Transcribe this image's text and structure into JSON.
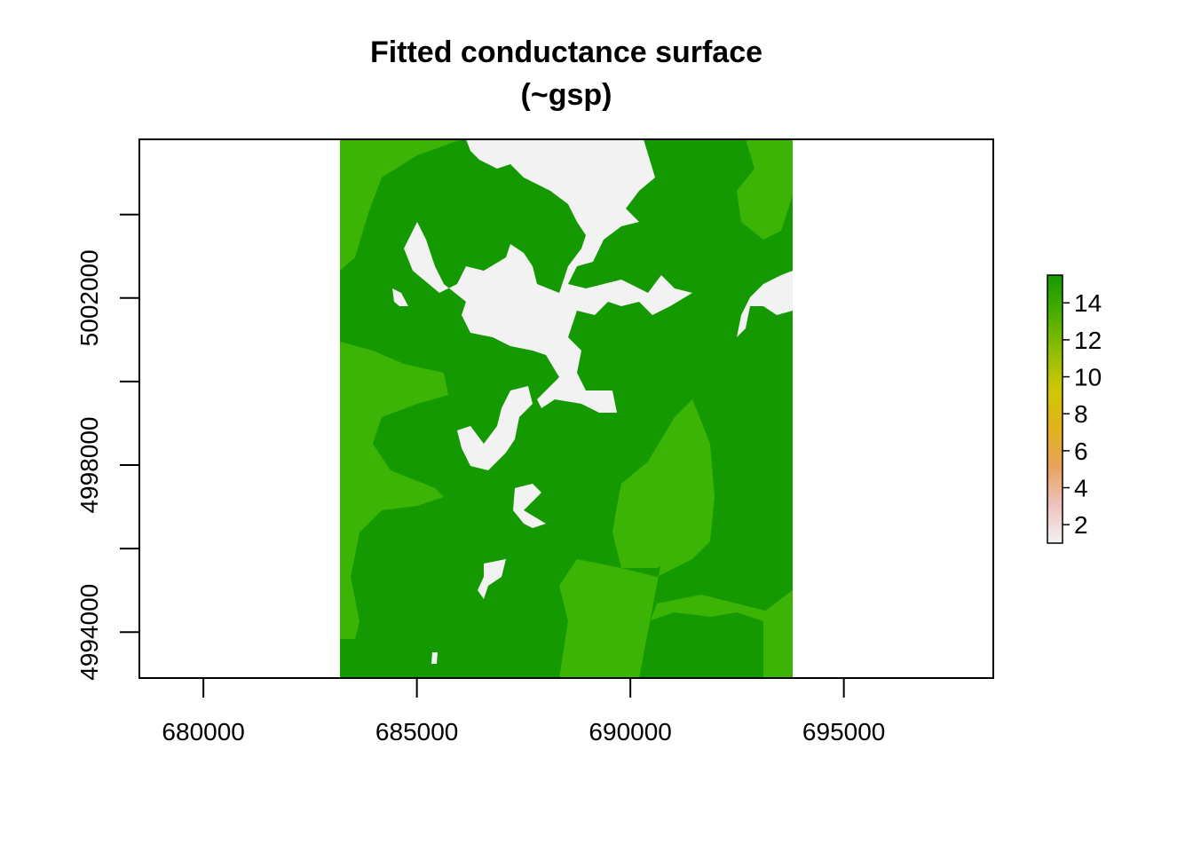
{
  "chart_data": {
    "type": "heatmap",
    "title": "Fitted conductance surface",
    "subtitle": "(~gsp)",
    "xlabel": "",
    "ylabel": "",
    "xlim": [
      678500,
      698500
    ],
    "ylim": [
      4992900,
      5005800
    ],
    "x_ticks": [
      680000,
      685000,
      690000,
      695000
    ],
    "x_tick_labels": [
      "680000",
      "685000",
      "690000",
      "695000"
    ],
    "y_ticks": [
      4994000,
      4996000,
      4998000,
      5000000,
      5002000,
      5004000
    ],
    "y_tick_labels": [
      "4994000",
      "",
      "4998000",
      "",
      "5002000",
      ""
    ],
    "raster_extent": {
      "xmin": 683300,
      "xmax": 694000,
      "ymin": 4992900,
      "ymax": 5005800
    },
    "value_classes": [
      {
        "value": 1,
        "color": "#f2f2f2"
      },
      {
        "value": 13,
        "color": "#3cb405"
      },
      {
        "value": 15,
        "color": "#149a00"
      }
    ],
    "colorbar": {
      "range": [
        1,
        15.5
      ],
      "ticks": [
        2,
        4,
        6,
        8,
        10,
        12,
        14
      ],
      "tick_labels": [
        "2",
        "4",
        "6",
        "8",
        "10",
        "12",
        "14"
      ],
      "colors": [
        "#f2f2f2",
        "#efc2c0",
        "#e8a25a",
        "#e1b21a",
        "#cfc800",
        "#8fbf00",
        "#4aae00",
        "#149a00"
      ]
    },
    "grid": false,
    "legend": "right"
  }
}
